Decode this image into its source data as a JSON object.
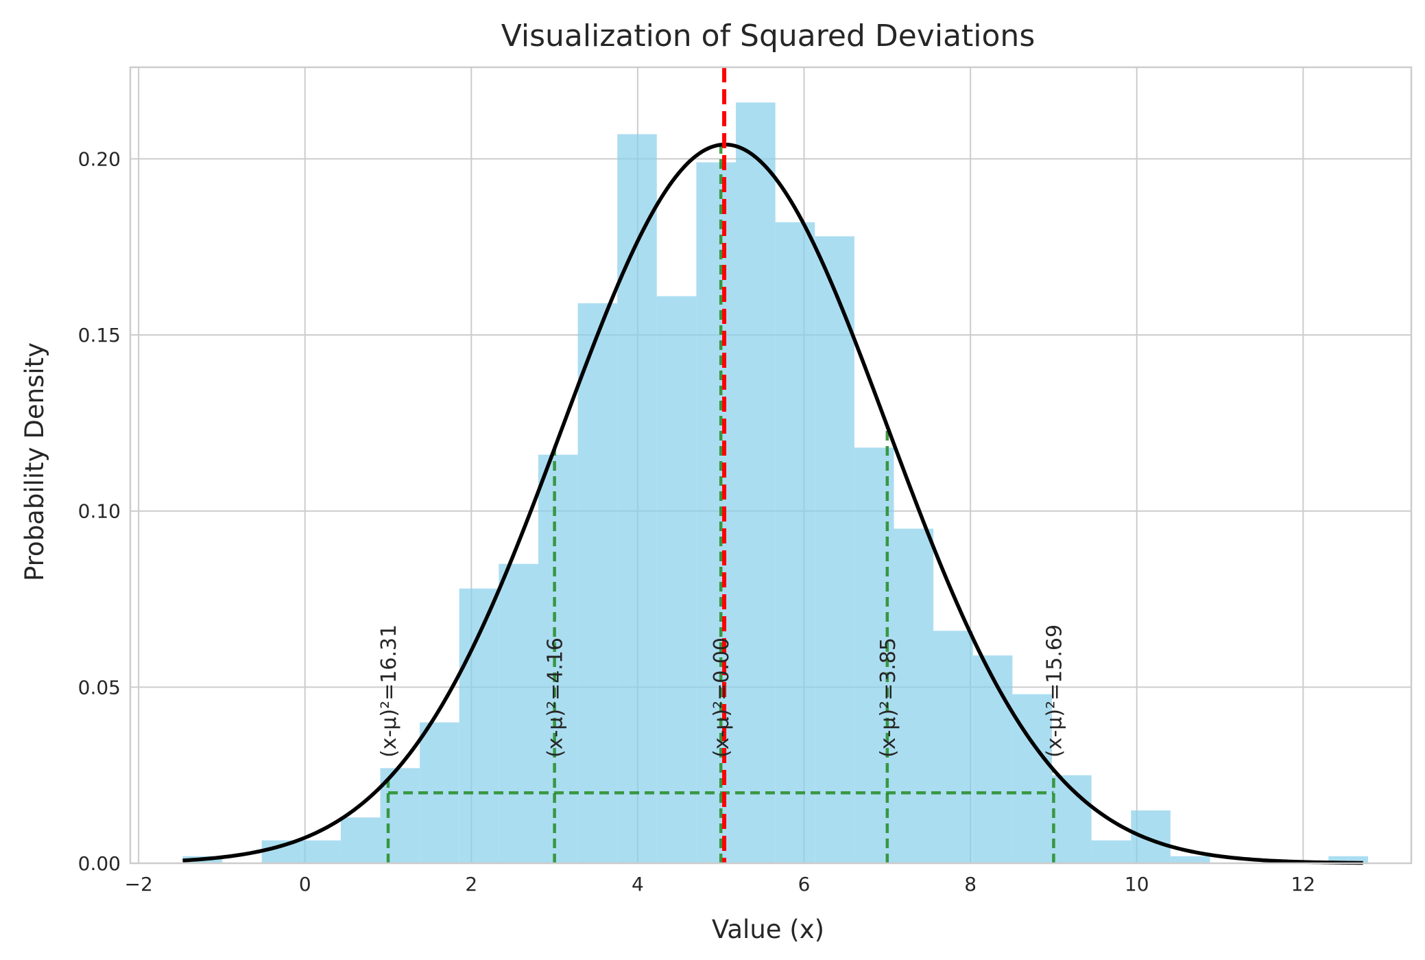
{
  "chart_data": {
    "type": "bar",
    "title": "Visualization of Squared Deviations",
    "xlabel": "Value (x)",
    "ylabel": "Probability Density",
    "xlim": [
      -2.1,
      13.3
    ],
    "ylim": [
      0,
      0.226
    ],
    "xticks": [
      -2,
      0,
      2,
      4,
      6,
      8,
      10,
      12
    ],
    "xtick_labels": [
      "−2",
      "0",
      "2",
      "4",
      "6",
      "8",
      "10",
      "12"
    ],
    "yticks": [
      0,
      0.05,
      0.1,
      0.15,
      0.2
    ],
    "ytick_labels": [
      "0.00",
      "0.05",
      "0.10",
      "0.15",
      "0.20"
    ],
    "grid": true,
    "histogram": {
      "color": "#87CEEB",
      "bin_edges": [
        -1.47,
        -0.995,
        -0.52,
        -0.045,
        0.43,
        0.905,
        1.38,
        1.855,
        2.33,
        2.805,
        3.28,
        3.755,
        4.23,
        4.705,
        5.18,
        5.655,
        6.13,
        6.605,
        7.08,
        7.555,
        8.03,
        8.505,
        8.98,
        9.455,
        9.93,
        10.405,
        10.88,
        11.355,
        11.83,
        12.305,
        12.78
      ],
      "densities": [
        0.002,
        0.0,
        0.0065,
        0.0065,
        0.013,
        0.027,
        0.04,
        0.078,
        0.085,
        0.116,
        0.159,
        0.207,
        0.161,
        0.199,
        0.216,
        0.182,
        0.178,
        0.118,
        0.095,
        0.066,
        0.059,
        0.048,
        0.025,
        0.0065,
        0.015,
        0.002,
        0.0,
        0.0,
        0.0,
        0.002
      ]
    },
    "pdf_curve": {
      "mean": 5.05,
      "std": 1.955,
      "x_range": [
        -1.47,
        12.72
      ],
      "color": "#000000"
    },
    "mean_line": {
      "x": 5.04,
      "color": "#FF0000"
    },
    "deviation_points": [
      {
        "x": 1.0,
        "label": "(x-μ)²=16.31"
      },
      {
        "x": 3.0,
        "label": "(x-μ)²=4.16"
      },
      {
        "x": 5.0,
        "label": "(x-μ)²=0.00"
      },
      {
        "x": 7.0,
        "label": "(x-μ)²=3.85"
      },
      {
        "x": 9.0,
        "label": "(x-μ)²=15.69"
      }
    ],
    "deviation_baseline_y": 0.02,
    "deviation_color": "#228B22"
  }
}
